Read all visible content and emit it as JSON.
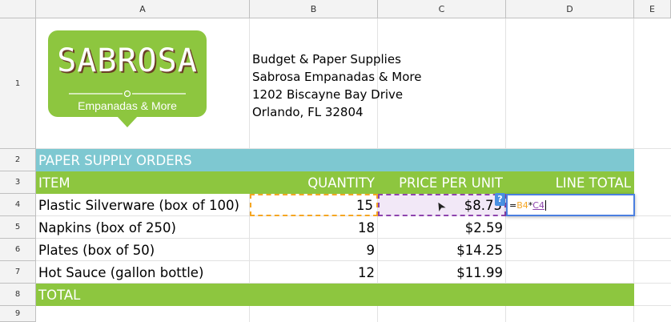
{
  "column_headers": [
    "A",
    "B",
    "C",
    "D",
    "E"
  ],
  "row_numbers": [
    "1",
    "2",
    "3",
    "4",
    "5",
    "6",
    "7",
    "8",
    "9"
  ],
  "logo": {
    "name": "SABROSA",
    "tagline": "Empanadas & More",
    "color": "#8dc63f"
  },
  "address": {
    "line1": "Budget & Paper Supplies",
    "line2": "Sabrosa Empanadas & More",
    "line3": "1202 Biscayne Bay Drive",
    "line4": "Orlando, FL 32804"
  },
  "section_header": {
    "label": "PAPER SUPPLY ORDERS",
    "color": "#7ec8d1"
  },
  "table_header": {
    "item": "ITEM",
    "quantity": "QUANTITY",
    "price": "PRICE PER UNIT",
    "line_total": "LINE TOTAL",
    "color": "#8dc63f"
  },
  "rows": [
    {
      "item": "Plastic Silverware (box of 100)",
      "quantity": "15",
      "price": "$8.75"
    },
    {
      "item": "Napkins (box of 250)",
      "quantity": "18",
      "price": "$2.59"
    },
    {
      "item": "Plates (box of 50)",
      "quantity": "9",
      "price": "$14.25"
    },
    {
      "item": "Hot Sauce (gallon bottle)",
      "quantity": "12",
      "price": "$11.99"
    }
  ],
  "total_row": {
    "label": "TOTAL",
    "color": "#8dc63f"
  },
  "editing": {
    "eq": "=",
    "ref1": "B4",
    "op": "*",
    "ref2": "C4",
    "ref1_color": "#f5a623",
    "ref2_color": "#8e44ad",
    "help_glyph": "?",
    "cursor_glyph": "➤"
  }
}
